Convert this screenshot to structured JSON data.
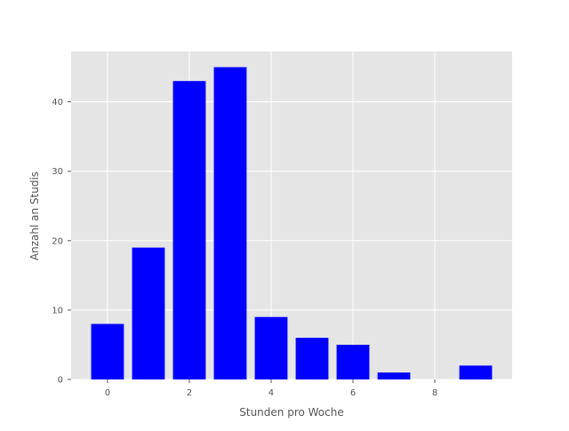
{
  "chart_data": {
    "type": "bar",
    "xlabel": "Stunden pro Woche",
    "ylabel": "Anzahl an Studis",
    "x": [
      0,
      1,
      2,
      3,
      4,
      5,
      6,
      7,
      8,
      9
    ],
    "values": [
      8,
      19,
      43,
      45,
      9,
      6,
      5,
      1,
      0,
      2
    ],
    "xlim": [
      -0.89,
      9.89
    ],
    "ylim": [
      0,
      47.25
    ],
    "xticks": [
      0,
      2,
      4,
      6,
      8
    ],
    "yticks": [
      0,
      10,
      20,
      30,
      40
    ],
    "grid": true,
    "colors": {
      "bar": "#0000ff",
      "plot_background": "#e5e5e5",
      "grid": "#ffffff",
      "text": "#555555"
    }
  }
}
